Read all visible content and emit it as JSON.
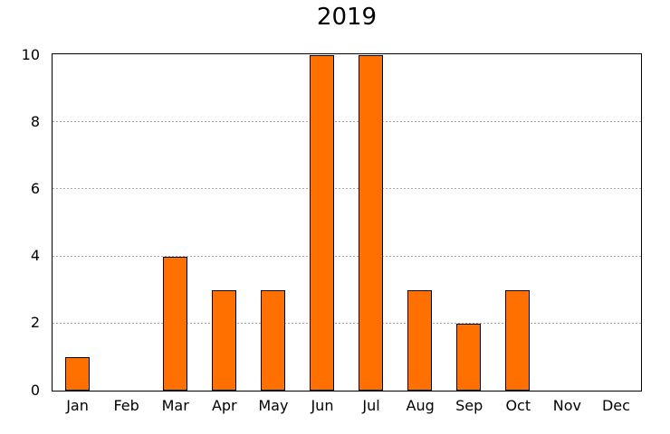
{
  "title": "2019",
  "colors": {
    "bar_fill": "#FF7000",
    "bar_border": "#000000",
    "grid": "#A8A8A8",
    "text": "#000000",
    "background": "#FFFFFF"
  },
  "chart_data": {
    "type": "bar",
    "title": "2019",
    "categories": [
      "Jan",
      "Feb",
      "Mar",
      "Apr",
      "May",
      "Jun",
      "Jul",
      "Aug",
      "Sep",
      "Oct",
      "Nov",
      "Dec"
    ],
    "values": [
      1,
      0,
      4,
      3,
      3,
      10,
      10,
      3,
      2,
      3,
      0,
      0
    ],
    "xlabel": "",
    "ylabel": "",
    "ylim": [
      0,
      10
    ],
    "yticks": [
      0,
      2,
      4,
      6,
      8,
      10
    ],
    "gridlines_at": [
      2,
      4,
      6,
      8
    ],
    "grid_style": "dotted horizontal",
    "legend": "none",
    "bar_width_fraction": 0.5
  }
}
